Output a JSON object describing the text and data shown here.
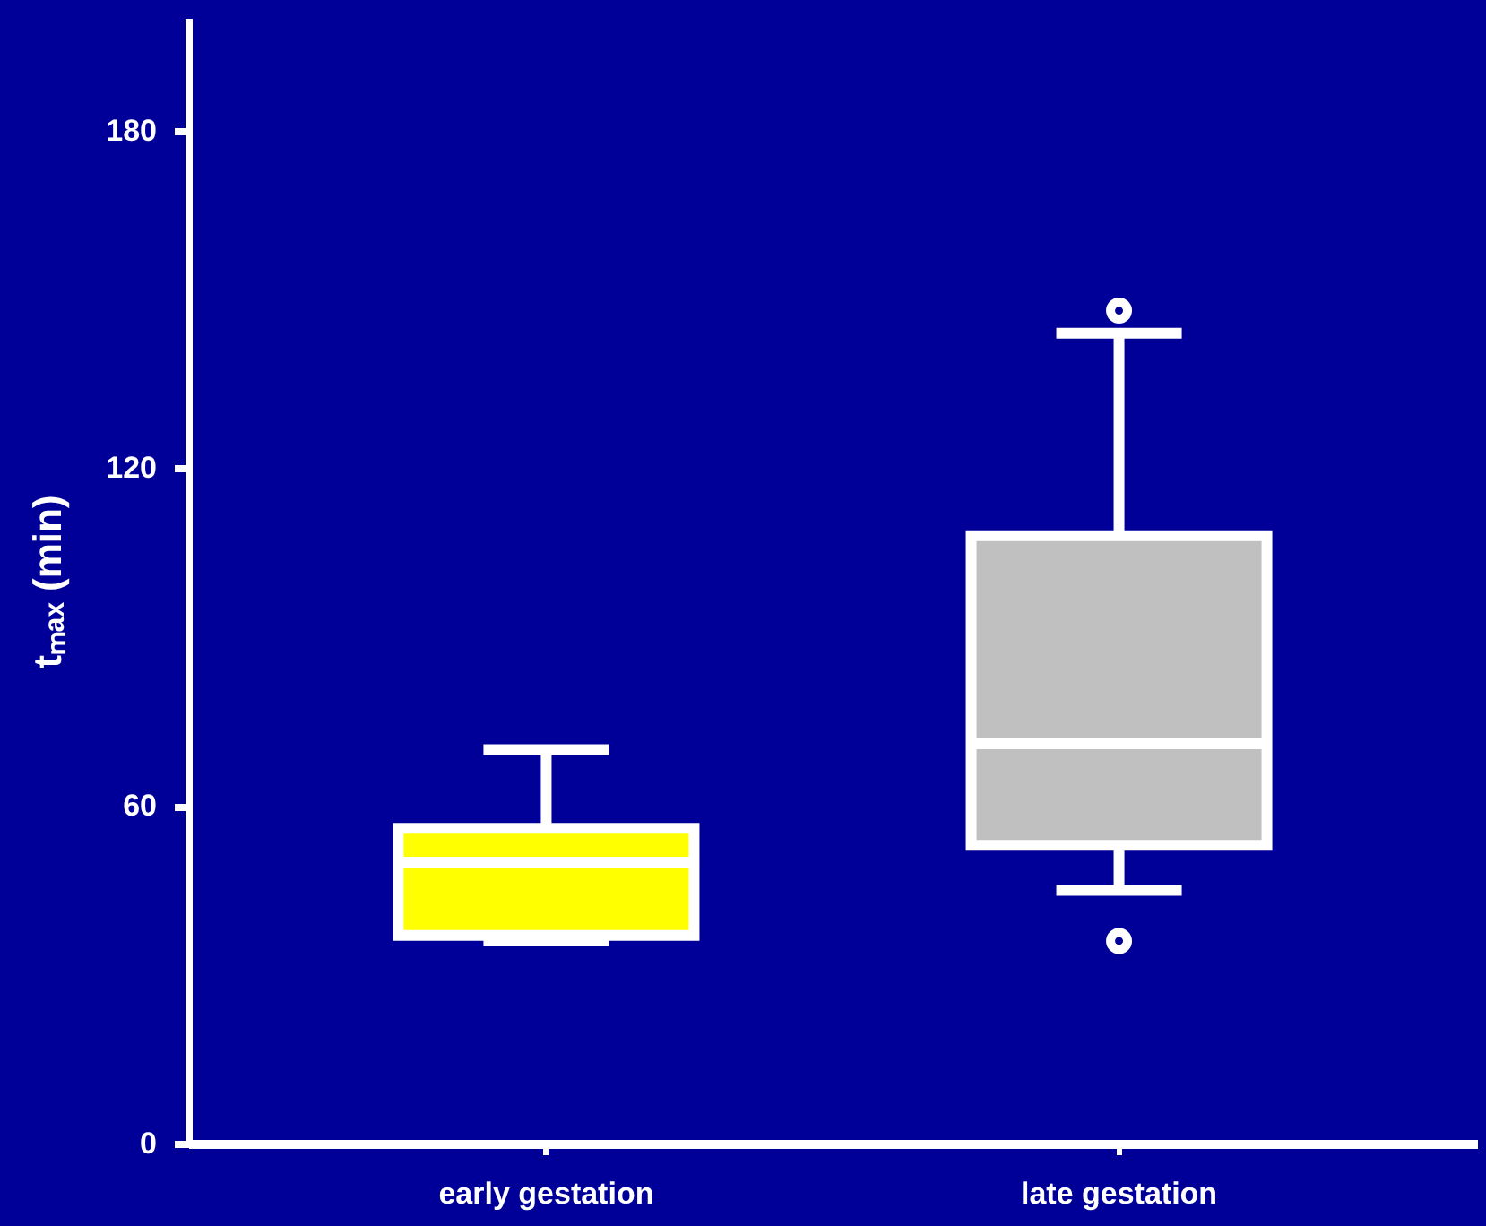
{
  "chart_data": {
    "type": "box",
    "ylabel": "tₘₐₓ (min)",
    "categories": [
      "early gestation",
      "late gestation"
    ],
    "colors": [
      "#ffff00",
      "#c0c0c0"
    ],
    "boxes": [
      {
        "low": 36,
        "q1": 37,
        "median": 50,
        "q3": 56,
        "high": 70
      },
      {
        "low": 45,
        "q1": 53,
        "median": 71,
        "q3": 108,
        "high": 144,
        "outliers": [
          36,
          148
        ]
      }
    ],
    "ylim": [
      0,
      200
    ],
    "yticks": [
      0,
      60,
      120,
      180
    ],
    "grid": false
  }
}
